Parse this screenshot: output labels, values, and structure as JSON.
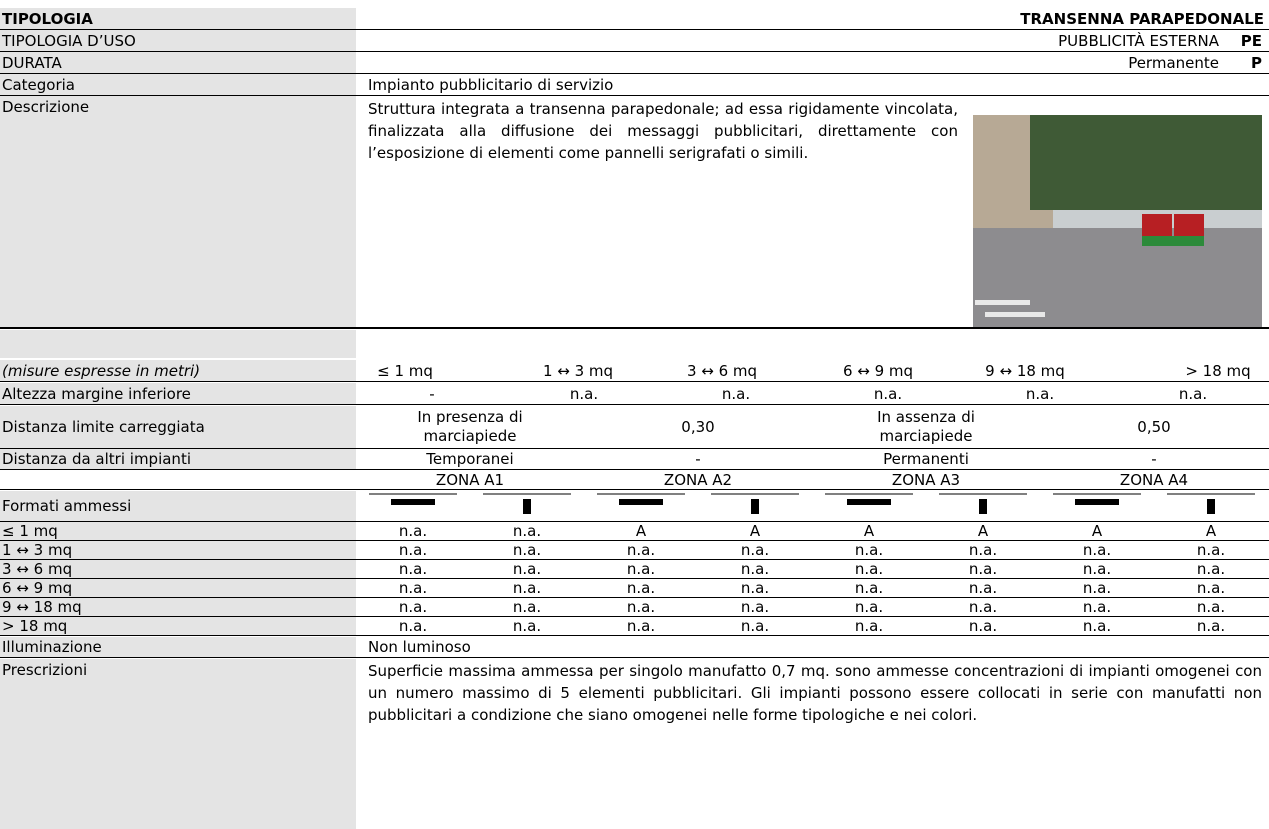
{
  "info": [
    {
      "label": "TIPOLOGIA",
      "value": "TRANSENNA PARAPEDONALE"
    },
    {
      "label": "TIPOLOGIA D’USO",
      "value": "PUBBLICITÀ ESTERNA",
      "code": "PE"
    },
    {
      "label": "DURATA",
      "value": "Permanente",
      "code": "P"
    },
    {
      "label": "Categoria",
      "value": "Impianto pubblicitario di  servizio"
    },
    {
      "label": "Descrizione",
      "value": "Struttura integrata a transenna parapedonale; ad essa rigidamente vincolata, finalizzata alla diffusione dei messaggi pubblicitari, direttamente con l’esposizione di elementi come pannelli serigrafati o simili."
    }
  ],
  "sizes": {
    "note": "(misure espresse in metri)",
    "columns": [
      "≤ 1 mq",
      "1 ↔ 3 mq",
      "3 ↔ 6 mq",
      "6 ↔ 9 mq",
      "9 ↔ 18 mq",
      "> 18 mq"
    ]
  },
  "height_row": {
    "label": "Altezza margine inferiore",
    "cells": [
      "-",
      "n.a.",
      "n.a.",
      "n.a.",
      "n.a.",
      "n.a."
    ]
  },
  "distances": [
    {
      "label": "Distanza limite carreggiata",
      "cells": [
        "In presenza di marciapiede",
        "0,30",
        "In assenza di marciapiede",
        "0,50"
      ]
    },
    {
      "label": "Distanza da altri impianti",
      "cells": [
        "Temporanei",
        "-",
        "Permanenti",
        "-"
      ]
    }
  ],
  "zones": [
    "ZONA A1",
    "ZONA A2",
    "ZONA A3",
    "ZONA A4"
  ],
  "formats_label": "Formati ammessi",
  "matrix": [
    {
      "label": "≤ 1 mq",
      "cells": [
        "n.a.",
        "n.a.",
        "A",
        "A",
        "A",
        "A",
        "A",
        "A"
      ]
    },
    {
      "label": "1 ↔ 3 mq",
      "cells": [
        "n.a.",
        "n.a.",
        "n.a.",
        "n.a.",
        "n.a.",
        "n.a.",
        "n.a.",
        "n.a."
      ]
    },
    {
      "label": "3 ↔ 6 mq",
      "cells": [
        "n.a.",
        "n.a.",
        "n.a.",
        "n.a.",
        "n.a.",
        "n.a.",
        "n.a.",
        "n.a."
      ]
    },
    {
      "label": "6 ↔ 9 mq",
      "cells": [
        "n.a.",
        "n.a.",
        "n.a.",
        "n.a.",
        "n.a.",
        "n.a.",
        "n.a.",
        "n.a."
      ]
    },
    {
      "label": "9 ↔ 18 mq",
      "cells": [
        "n.a.",
        "n.a.",
        "n.a.",
        "n.a.",
        "n.a.",
        "n.a.",
        "n.a.",
        "n.a."
      ]
    },
    {
      "label": "> 18 mq",
      "cells": [
        "n.a.",
        "n.a.",
        "n.a.",
        "n.a.",
        "n.a.",
        "n.a.",
        "n.a.",
        "n.a."
      ]
    }
  ],
  "lighting": {
    "label": "Illuminazione",
    "value": "Non luminoso"
  },
  "prescriptions": {
    "label": "Prescrizioni",
    "value": "Superficie massima ammessa per singolo manufatto 0,7 mq. sono ammesse concentrazioni di impianti omogenei con un numero massimo di 5 elementi pubblicitari. Gli impianti possono essere collocati in serie con manufatti non pubblicitari a condizione che siano omogenei nelle forme tipologiche e nei colori."
  }
}
